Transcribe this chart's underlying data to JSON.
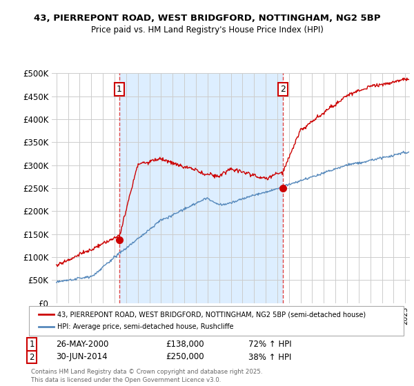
{
  "title1": "43, PIERREPONT ROAD, WEST BRIDGFORD, NOTTINGHAM, NG2 5BP",
  "title2": "Price paid vs. HM Land Registry's House Price Index (HPI)",
  "legend_line1": "43, PIERREPONT ROAD, WEST BRIDGFORD, NOTTINGHAM, NG2 5BP (semi-detached house)",
  "legend_line2": "HPI: Average price, semi-detached house, Rushcliffe",
  "footer": "Contains HM Land Registry data © Crown copyright and database right 2025.\nThis data is licensed under the Open Government Licence v3.0.",
  "sale1_date": "26-MAY-2000",
  "sale1_price": "£138,000",
  "sale1_hpi": "72% ↑ HPI",
  "sale2_date": "30-JUN-2014",
  "sale2_price": "£250,000",
  "sale2_hpi": "38% ↑ HPI",
  "sale1_x": 2000.4,
  "sale1_y": 138000,
  "sale2_x": 2014.5,
  "sale2_y": 250000,
  "red_color": "#cc0000",
  "blue_color": "#5588bb",
  "shade_color": "#ddeeff",
  "dashed_color": "#dd4444",
  "ylim": [
    0,
    500000
  ],
  "xlim": [
    1994.6,
    2025.4
  ],
  "yticks": [
    0,
    50000,
    100000,
    150000,
    200000,
    250000,
    300000,
    350000,
    400000,
    450000,
    500000
  ],
  "background_color": "#ffffff",
  "grid_color": "#cccccc"
}
